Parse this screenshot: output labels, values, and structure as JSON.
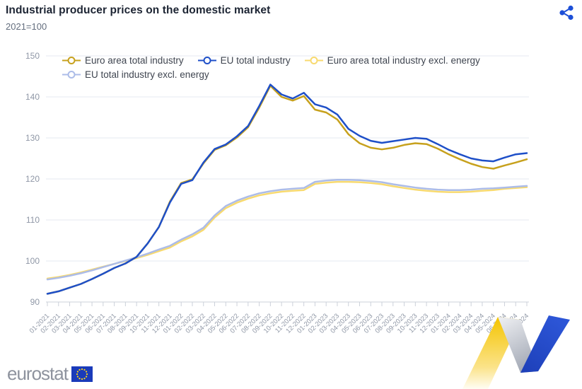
{
  "header": {
    "title": "Industrial producer prices on the domestic market",
    "subtitle": "2021=100"
  },
  "footer": {
    "logo_text": "eurostat"
  },
  "icons": {
    "share": "share-icon",
    "eu_flag": "eu-flag-icon"
  },
  "colors": {
    "euro_area_total": "#c7a11d",
    "eu_total": "#1e4fc8",
    "euro_area_excl_energy": "#f8da6f",
    "eu_excl_energy": "#acbce8",
    "grid": "#e6eaf1",
    "axis": "#ccd1da",
    "axis_label": "#8f97a6",
    "accent_blue": "#1d4fd7"
  },
  "chart_data": {
    "type": "line",
    "title": "Industrial producer prices on the domestic market",
    "subtitle": "2021=100",
    "xlabel": "",
    "ylabel": "",
    "ylim": [
      90,
      150
    ],
    "yticks": [
      90,
      100,
      110,
      120,
      130,
      140,
      150
    ],
    "grid": true,
    "legend_position": "top",
    "x": [
      "01-2021",
      "02-2021",
      "03-2021",
      "04-2021",
      "05-2021",
      "06-2021",
      "07-2021",
      "08-2021",
      "09-2021",
      "10-2021",
      "11-2021",
      "12-2021",
      "01-2022",
      "02-2022",
      "03-2022",
      "04-2022",
      "05-2022",
      "06-2022",
      "07-2022",
      "08-2022",
      "09-2022",
      "10-2022",
      "11-2022",
      "12-2022",
      "01-2023",
      "02-2023",
      "03-2023",
      "04-2023",
      "05-2023",
      "06-2023",
      "07-2023",
      "08-2023",
      "09-2023",
      "10-2023",
      "11-2023",
      "12-2023",
      "01-2024",
      "02-2024",
      "03-2024",
      "04-2024",
      "05-2024",
      "06-2024",
      "07-2024",
      "08-2024"
    ],
    "series": [
      {
        "name": "Euro area total industry",
        "color": "#c7a11d",
        "values": [
          92.0,
          92.6,
          93.5,
          94.4,
          95.6,
          96.9,
          98.3,
          99.4,
          101.0,
          104.3,
          108.3,
          114.5,
          119.0,
          119.9,
          123.8,
          127.1,
          128.2,
          130.1,
          132.6,
          137.4,
          142.7,
          140.0,
          139.1,
          140.2,
          136.9,
          136.2,
          134.5,
          130.9,
          128.7,
          127.6,
          127.2,
          127.6,
          128.3,
          128.7,
          128.5,
          127.4,
          126.0,
          124.8,
          123.7,
          122.9,
          122.5,
          123.3,
          124.0,
          124.8
        ]
      },
      {
        "name": "EU total industry",
        "color": "#1e4fc8",
        "values": [
          92.0,
          92.6,
          93.5,
          94.4,
          95.6,
          96.9,
          98.3,
          99.4,
          101.0,
          104.3,
          108.3,
          114.3,
          118.8,
          119.7,
          124.0,
          127.3,
          128.4,
          130.4,
          132.9,
          137.8,
          143.0,
          140.6,
          139.6,
          141.0,
          138.2,
          137.4,
          135.7,
          132.2,
          130.5,
          129.3,
          128.8,
          129.2,
          129.6,
          130.0,
          129.8,
          128.5,
          127.1,
          126.0,
          125.0,
          124.5,
          124.3,
          125.2,
          126.0,
          126.3
        ]
      },
      {
        "name": "Euro area total industry excl. energy",
        "color": "#f8da6f",
        "values": [
          95.7,
          96.1,
          96.6,
          97.2,
          97.9,
          98.6,
          99.3,
          100.0,
          100.7,
          101.5,
          102.4,
          103.3,
          104.8,
          106.0,
          107.6,
          110.6,
          112.9,
          114.2,
          115.2,
          116.0,
          116.5,
          116.9,
          117.1,
          117.3,
          118.8,
          119.1,
          119.3,
          119.3,
          119.2,
          119.0,
          118.7,
          118.2,
          117.8,
          117.4,
          117.1,
          116.9,
          116.8,
          116.8,
          116.9,
          117.1,
          117.3,
          117.6,
          117.8,
          118.0
        ]
      },
      {
        "name": "EU total industry excl. energy",
        "color": "#acbce8",
        "values": [
          95.5,
          95.9,
          96.4,
          97.0,
          97.7,
          98.5,
          99.3,
          100.1,
          100.9,
          101.8,
          102.8,
          103.7,
          105.2,
          106.5,
          108.1,
          111.1,
          113.4,
          114.7,
          115.7,
          116.5,
          117.0,
          117.4,
          117.6,
          117.8,
          119.3,
          119.6,
          119.8,
          119.8,
          119.7,
          119.5,
          119.2,
          118.7,
          118.3,
          117.9,
          117.6,
          117.4,
          117.3,
          117.3,
          117.4,
          117.6,
          117.7,
          117.9,
          118.1,
          118.3
        ]
      }
    ]
  }
}
